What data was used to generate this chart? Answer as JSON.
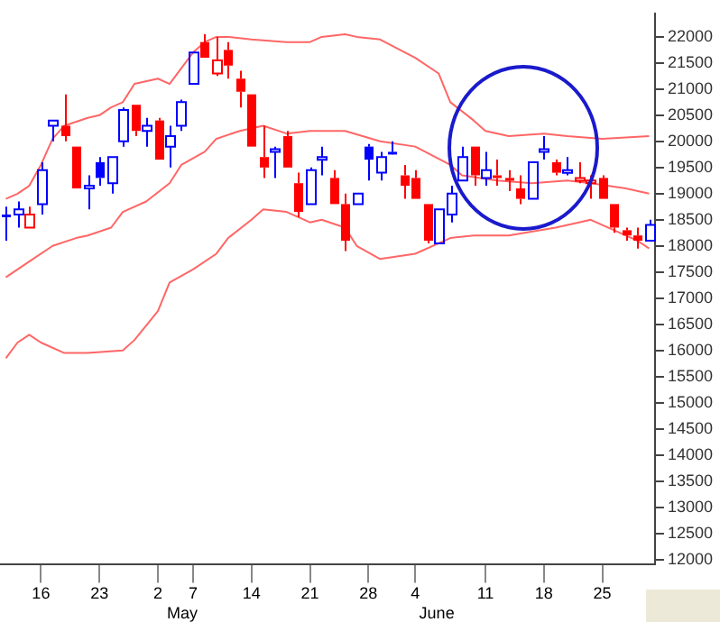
{
  "chart_data": {
    "type": "candlestick",
    "categories": [
      null,
      null,
      null,
      "16",
      null,
      null,
      null,
      null,
      "23",
      null,
      null,
      null,
      null,
      "2",
      null,
      null,
      "7",
      null,
      null,
      null,
      null,
      "14",
      null,
      null,
      null,
      null,
      "21",
      null,
      null,
      null,
      null,
      "28",
      null,
      null,
      null,
      "4",
      null,
      null,
      null,
      null,
      null,
      "11",
      null,
      null,
      null,
      null,
      "18",
      null,
      null,
      null,
      null,
      "25",
      null,
      null,
      null,
      null
    ],
    "ohlc": [
      [
        18600,
        18750,
        18100,
        18550
      ],
      [
        18600,
        18850,
        18350,
        18700
      ],
      [
        18350,
        18750,
        18350,
        18600
      ],
      [
        18800,
        19600,
        18600,
        19450
      ],
      [
        20300,
        20400,
        20000,
        20400
      ],
      [
        20300,
        20900,
        20000,
        20100
      ],
      [
        19900,
        19900,
        19100,
        19100
      ],
      [
        19100,
        19350,
        18700,
        19150
      ],
      [
        19600,
        19700,
        19150,
        19300
      ],
      [
        19200,
        19700,
        19000,
        19700
      ],
      [
        20000,
        20650,
        19900,
        20600
      ],
      [
        20700,
        20700,
        20100,
        20200
      ],
      [
        20200,
        20450,
        19900,
        20300
      ],
      [
        20400,
        20450,
        19650,
        19650
      ],
      [
        19900,
        20300,
        19500,
        20100
      ],
      [
        20300,
        20800,
        20200,
        20750
      ],
      [
        21100,
        21700,
        21100,
        21700
      ],
      [
        21900,
        22050,
        21600,
        21600
      ],
      [
        21300,
        22000,
        21250,
        21550
      ],
      [
        21750,
        21900,
        21200,
        21450
      ],
      [
        21200,
        21350,
        20650,
        20950
      ],
      [
        20900,
        20900,
        19900,
        19900
      ],
      [
        19700,
        20300,
        19300,
        19500
      ],
      [
        19800,
        19900,
        19300,
        19850
      ],
      [
        20100,
        20200,
        19500,
        19500
      ],
      [
        19200,
        19400,
        18550,
        18650
      ],
      [
        18800,
        19500,
        18800,
        19450
      ],
      [
        19650,
        19900,
        19350,
        19700
      ],
      [
        19300,
        19450,
        18800,
        18800
      ],
      [
        18800,
        19000,
        17900,
        18100
      ],
      [
        18800,
        19000,
        18800,
        19000
      ],
      [
        19900,
        19950,
        19250,
        19650
      ],
      [
        19400,
        19800,
        19250,
        19700
      ],
      [
        19800,
        20000,
        19750,
        19750
      ],
      [
        19350,
        19550,
        18900,
        19150
      ],
      [
        19300,
        19450,
        18900,
        18900
      ],
      [
        18800,
        18800,
        18050,
        18100
      ],
      [
        18050,
        18700,
        18050,
        18700
      ],
      [
        18600,
        19150,
        18450,
        19000
      ],
      [
        19250,
        19900,
        19250,
        19700
      ],
      [
        19900,
        19900,
        19150,
        19350
      ],
      [
        19300,
        19800,
        19150,
        19450
      ],
      [
        19350,
        19650,
        19150,
        19300
      ],
      [
        19300,
        19450,
        19050,
        19250
      ],
      [
        19100,
        19350,
        18800,
        18900
      ],
      [
        18900,
        19600,
        18900,
        19600
      ],
      [
        19800,
        20100,
        19650,
        19850
      ],
      [
        19600,
        19650,
        19350,
        19400
      ],
      [
        19400,
        19700,
        19350,
        19450
      ],
      [
        19250,
        19600,
        19200,
        19300
      ],
      [
        19200,
        19350,
        18900,
        19250
      ],
      [
        19300,
        19350,
        18900,
        18900
      ],
      [
        18800,
        18800,
        18250,
        18350
      ],
      [
        18300,
        18350,
        18100,
        18200
      ],
      [
        18200,
        18350,
        17950,
        18100
      ],
      [
        18100,
        18500,
        18100,
        18400
      ]
    ],
    "colors": [
      "#0000ff",
      "#0000ff",
      "#ff0000",
      "#0000ff",
      "#0000ff",
      "#ff0000",
      "#ff0000",
      "#0000ff",
      "#0000ff",
      "#0000ff",
      "#0000ff",
      "#ff0000",
      "#0000ff",
      "#ff0000",
      "#0000ff",
      "#0000ff",
      "#0000ff",
      "#ff0000",
      "#ff0000",
      "#ff0000",
      "#ff0000",
      "#ff0000",
      "#ff0000",
      "#0000ff",
      "#ff0000",
      "#ff0000",
      "#0000ff",
      "#0000ff",
      "#ff0000",
      "#ff0000",
      "#0000ff",
      "#0000ff",
      "#0000ff",
      "#0000ff",
      "#ff0000",
      "#ff0000",
      "#ff0000",
      "#0000ff",
      "#0000ff",
      "#0000ff",
      "#ff0000",
      "#0000ff",
      "#ff0000",
      "#ff0000",
      "#ff0000",
      "#0000ff",
      "#0000ff",
      "#ff0000",
      "#0000ff",
      "#ff0000",
      "#ff0000",
      "#ff0000",
      "#ff0000",
      "#ff0000",
      "#ff0000",
      "#0000ff"
    ],
    "series": [
      {
        "type": "line",
        "color": "#ff6666",
        "values": [
          18900,
          19000,
          19150,
          19550,
          20050,
          20300,
          null,
          20450,
          20500,
          20650,
          20750,
          21100,
          null,
          21200,
          21100,
          null,
          21700,
          21900,
          22000,
          22000,
          null,
          21950,
          null,
          null,
          21900,
          null,
          21900,
          22000,
          null,
          22050,
          22000,
          null,
          21950,
          null,
          null,
          21600,
          null,
          21300,
          20750,
          null,
          20400,
          20200,
          null,
          20100,
          null,
          null,
          20150,
          null,
          20100,
          null,
          null,
          20050,
          null,
          null,
          null,
          20100
        ]
      },
      {
        "type": "line",
        "color": "#ff6666",
        "values": [
          17400,
          null,
          17700,
          null,
          18000,
          null,
          18150,
          18200,
          null,
          18350,
          18650,
          null,
          18850,
          null,
          19200,
          19550,
          null,
          19800,
          20050,
          null,
          20200,
          null,
          20300,
          null,
          20150,
          null,
          20200,
          20200,
          null,
          20200,
          null,
          null,
          20000,
          null,
          null,
          19900,
          null,
          null,
          19550,
          19350,
          null,
          null,
          19250,
          null,
          null,
          19200,
          null,
          null,
          19250,
          null,
          19200,
          null,
          null,
          19100,
          null,
          19000
        ]
      },
      {
        "type": "line",
        "color": "#ff6666",
        "values": [
          15850,
          16150,
          16300,
          16150,
          null,
          15950,
          null,
          15950,
          null,
          null,
          16000,
          16200,
          null,
          16750,
          17300,
          null,
          17550,
          null,
          17850,
          18150,
          null,
          18500,
          18700,
          null,
          18650,
          null,
          18450,
          18500,
          null,
          18350,
          18000,
          null,
          17750,
          null,
          null,
          17850,
          null,
          null,
          18150,
          null,
          18200,
          null,
          null,
          18200,
          null,
          null,
          null,
          18350,
          null,
          18450,
          18500,
          null,
          18300,
          null,
          18100,
          17950
        ]
      }
    ],
    "ylim": [
      11900,
      22450
    ],
    "yticks": [
      12000,
      12500,
      13000,
      13500,
      14000,
      14500,
      15000,
      15500,
      16000,
      16500,
      17000,
      17500,
      18000,
      18500,
      19000,
      19500,
      20000,
      20500,
      21000,
      21500,
      22000
    ],
    "annotations": [
      "May",
      "June"
    ],
    "grid": false,
    "legend": false,
    "marker": "none"
  }
}
